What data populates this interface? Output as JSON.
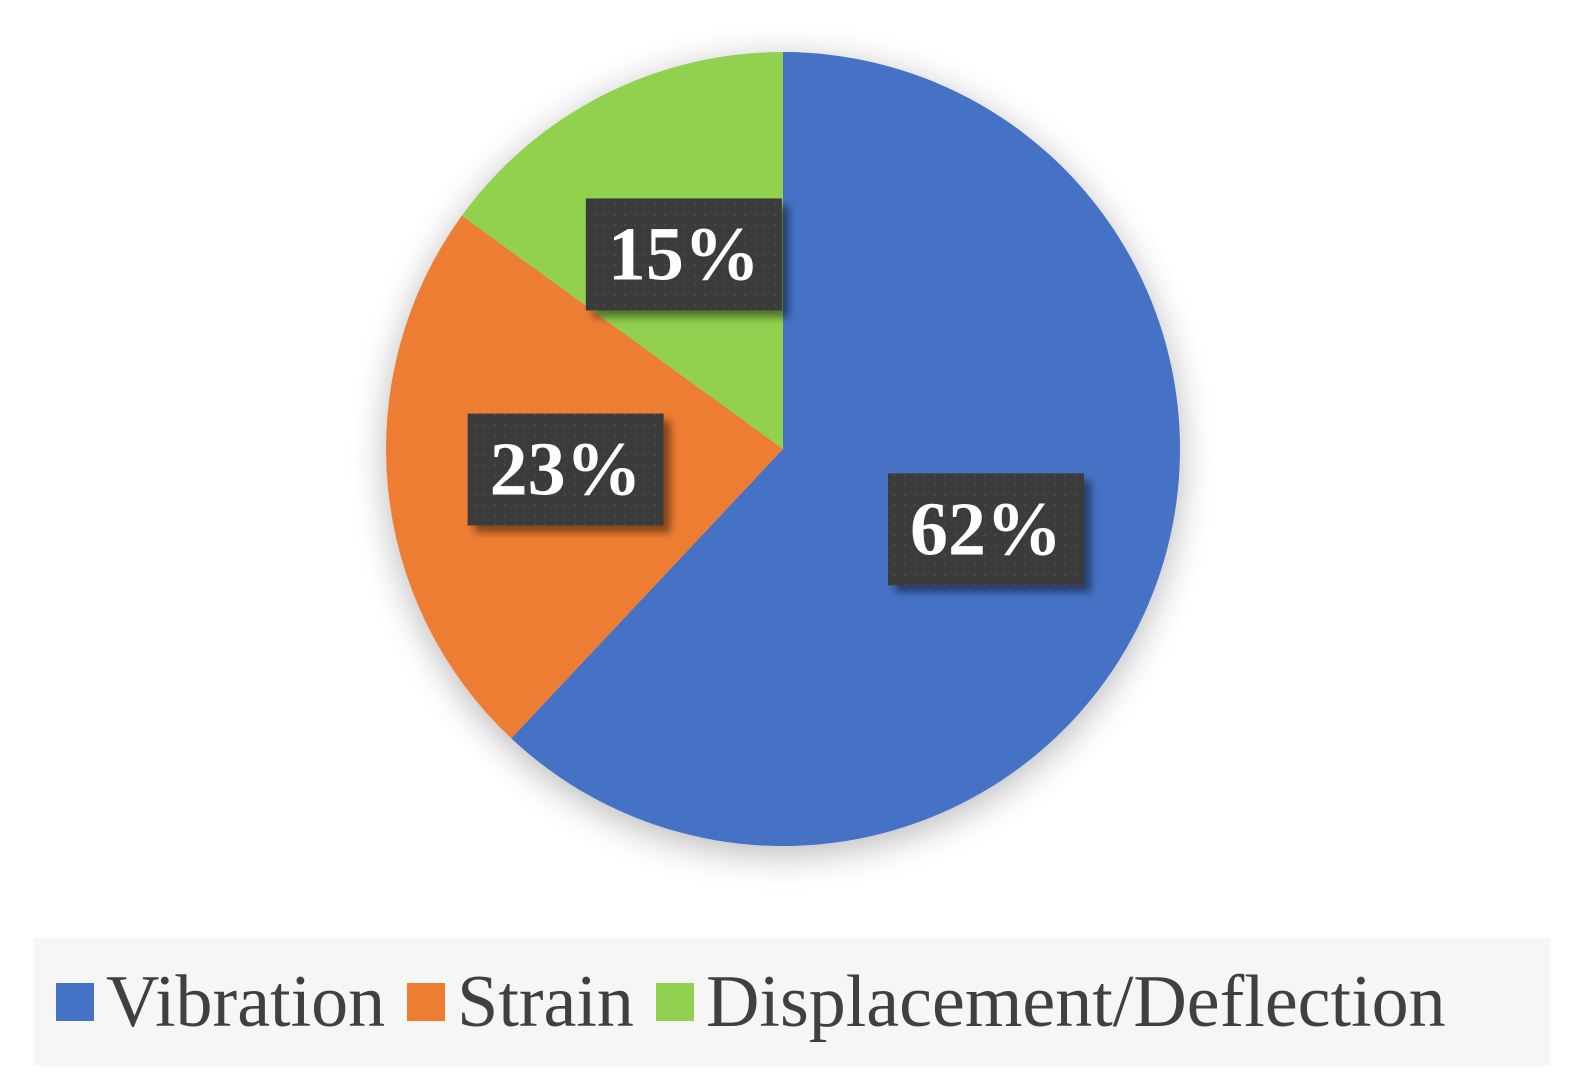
{
  "chart_data": {
    "type": "pie",
    "title": "",
    "categories": [
      "Vibration",
      "Strain",
      "Displacement/Deflection"
    ],
    "values": [
      62,
      23,
      15
    ],
    "unit": "%",
    "data_labels": [
      "62%",
      "23%",
      "15%"
    ],
    "colors": [
      "#4472c4",
      "#ed7d31",
      "#92d050"
    ],
    "start_angle_deg": 0,
    "direction": "clockwise",
    "legend_position": "bottom",
    "label_style": {
      "background": "#3a3a3a",
      "text_color": "#ffffff"
    }
  },
  "legend": {
    "items": [
      {
        "label": "Vibration",
        "color": "#4472c4"
      },
      {
        "label": "Strain",
        "color": "#ed7d31"
      },
      {
        "label": "Displacement/Deflection",
        "color": "#92d050"
      }
    ]
  }
}
